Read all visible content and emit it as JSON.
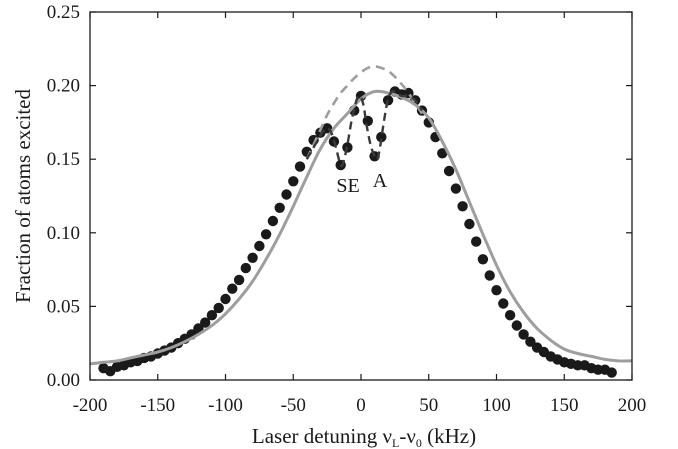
{
  "chart_data": {
    "type": "scatter",
    "xlabel": {
      "main": "Laser detuning ν",
      "sub1": "L",
      "mid": "-ν",
      "sub2": "0",
      "tail": " (kHz)"
    },
    "ylabel": "Fraction of atoms excited",
    "xlim": [
      -200,
      200
    ],
    "ylim": [
      0,
      0.25
    ],
    "xticks": [
      -200,
      -150,
      -100,
      -50,
      0,
      50,
      100,
      150,
      200
    ],
    "xtick_labels": [
      "-200",
      "-150",
      "-100",
      "-50",
      "0",
      "50",
      "100",
      "150",
      "200"
    ],
    "yticks": [
      0,
      0.05,
      0.1,
      0.15,
      0.2,
      0.25
    ],
    "ytick_labels": [
      "0.00",
      "0.05",
      "0.10",
      "0.15",
      "0.20",
      "0.25"
    ],
    "grid": false,
    "annotations": [
      {
        "text": "SE",
        "x": -12,
        "y": 0.129
      },
      {
        "text": "A",
        "x": 14,
        "y": 0.131
      }
    ],
    "series": [
      {
        "style": "markers",
        "color": "#1a1a1a",
        "x": [
          -190,
          -185,
          -180,
          -175,
          -170,
          -165,
          -160,
          -155,
          -150,
          -145,
          -140,
          -135,
          -130,
          -125,
          -120,
          -115,
          -110,
          -105,
          -100,
          -95,
          -90,
          -85,
          -80,
          -75,
          -70,
          -65,
          -60,
          -55,
          -50,
          -45,
          -40,
          -35,
          -30,
          -25,
          -20,
          -15,
          -10,
          -5,
          0,
          5,
          10,
          15,
          20,
          25,
          30,
          35,
          40,
          45,
          50,
          55,
          60,
          65,
          70,
          75,
          80,
          85,
          90,
          95,
          100,
          105,
          110,
          115,
          120,
          125,
          130,
          135,
          140,
          145,
          150,
          155,
          160,
          165,
          170,
          175,
          180,
          185
        ],
        "y": [
          0.008,
          0.006,
          0.009,
          0.01,
          0.012,
          0.013,
          0.015,
          0.016,
          0.018,
          0.02,
          0.022,
          0.025,
          0.028,
          0.031,
          0.035,
          0.039,
          0.044,
          0.049,
          0.055,
          0.062,
          0.068,
          0.076,
          0.083,
          0.091,
          0.099,
          0.108,
          0.117,
          0.126,
          0.135,
          0.145,
          0.155,
          0.163,
          0.168,
          0.171,
          0.162,
          0.146,
          0.158,
          0.183,
          0.193,
          0.176,
          0.152,
          0.165,
          0.19,
          0.196,
          0.194,
          0.195,
          0.19,
          0.183,
          0.175,
          0.165,
          0.154,
          0.142,
          0.13,
          0.118,
          0.106,
          0.094,
          0.082,
          0.071,
          0.061,
          0.052,
          0.044,
          0.037,
          0.031,
          0.026,
          0.022,
          0.019,
          0.016,
          0.014,
          0.012,
          0.011,
          0.01,
          0.01,
          0.008,
          0.007,
          0.007,
          0.005
        ]
      },
      {
        "style": "solid",
        "color": "#9e9e9e",
        "x": [
          -200,
          -190,
          -180,
          -170,
          -160,
          -150,
          -140,
          -130,
          -120,
          -110,
          -100,
          -90,
          -80,
          -70,
          -60,
          -50,
          -40,
          -30,
          -20,
          -10,
          0,
          10,
          20,
          30,
          40,
          50,
          60,
          70,
          80,
          90,
          100,
          110,
          120,
          130,
          140,
          150,
          160,
          170,
          180,
          190,
          200
        ],
        "y": [
          0.011,
          0.012,
          0.013,
          0.015,
          0.017,
          0.019,
          0.022,
          0.026,
          0.031,
          0.037,
          0.045,
          0.055,
          0.067,
          0.082,
          0.099,
          0.118,
          0.138,
          0.157,
          0.171,
          0.181,
          0.191,
          0.196,
          0.195,
          0.192,
          0.187,
          0.178,
          0.162,
          0.143,
          0.121,
          0.099,
          0.078,
          0.06,
          0.046,
          0.035,
          0.027,
          0.021,
          0.018,
          0.016,
          0.014,
          0.013,
          0.013
        ]
      },
      {
        "style": "dashed",
        "color": "#9e9e9e",
        "x": [
          -40,
          -35,
          -30,
          -25,
          -20,
          -15,
          -10,
          -5,
          0,
          5,
          10,
          15,
          20,
          25,
          30,
          35,
          40,
          45
        ],
        "y": [
          0.15,
          0.16,
          0.17,
          0.18,
          0.188,
          0.195,
          0.2,
          0.205,
          0.209,
          0.212,
          0.213,
          0.212,
          0.21,
          0.206,
          0.201,
          0.195,
          0.188,
          0.181
        ]
      },
      {
        "style": "dashed",
        "color": "#3a3a3a",
        "x": [
          -40,
          -35,
          -30,
          -27,
          -24,
          -21,
          -18,
          -15,
          -13,
          -10,
          -7,
          -4,
          -2,
          0,
          2,
          4,
          7,
          10,
          12,
          14,
          17,
          20,
          23,
          26,
          30,
          35,
          40,
          45
        ],
        "y": [
          0.15,
          0.158,
          0.166,
          0.17,
          0.171,
          0.166,
          0.156,
          0.146,
          0.148,
          0.16,
          0.176,
          0.188,
          0.193,
          0.192,
          0.186,
          0.174,
          0.16,
          0.152,
          0.15,
          0.158,
          0.176,
          0.191,
          0.196,
          0.195,
          0.193,
          0.193,
          0.19,
          0.183
        ]
      }
    ]
  }
}
